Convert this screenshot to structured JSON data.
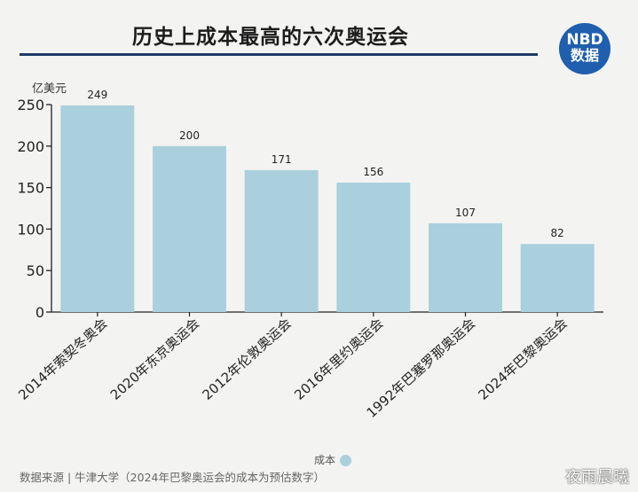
{
  "title": "历史上成本最高的六次奥运会",
  "logo": {
    "line1": "NBD",
    "line2": "数据"
  },
  "legend": {
    "label": "成本",
    "color": "#a9d0dc"
  },
  "source": "数据来源 | 牛津大学（2024年巴黎奥运会的成本为预估数字）",
  "corner_watermark": "夜雨晨曦",
  "chart_data": {
    "type": "bar",
    "title": "历史上成本最高的六次奥运会",
    "ylabel": "亿美元",
    "xlabel": "",
    "categories": [
      "2014年索契冬奥会",
      "2020年东京奥运会",
      "2012年伦敦奥运会",
      "2016年里约奥运会",
      "1992年巴塞罗那奥运会",
      "2024年巴黎奥运会"
    ],
    "series": [
      {
        "name": "成本",
        "values": [
          249,
          200,
          171,
          156,
          107,
          82
        ]
      }
    ],
    "ylim": [
      0,
      250
    ],
    "yticks": [
      0,
      50,
      100,
      150,
      200,
      250
    ],
    "grid": false,
    "legend_position": "bottom",
    "bar_color": "#a9d0dc"
  }
}
